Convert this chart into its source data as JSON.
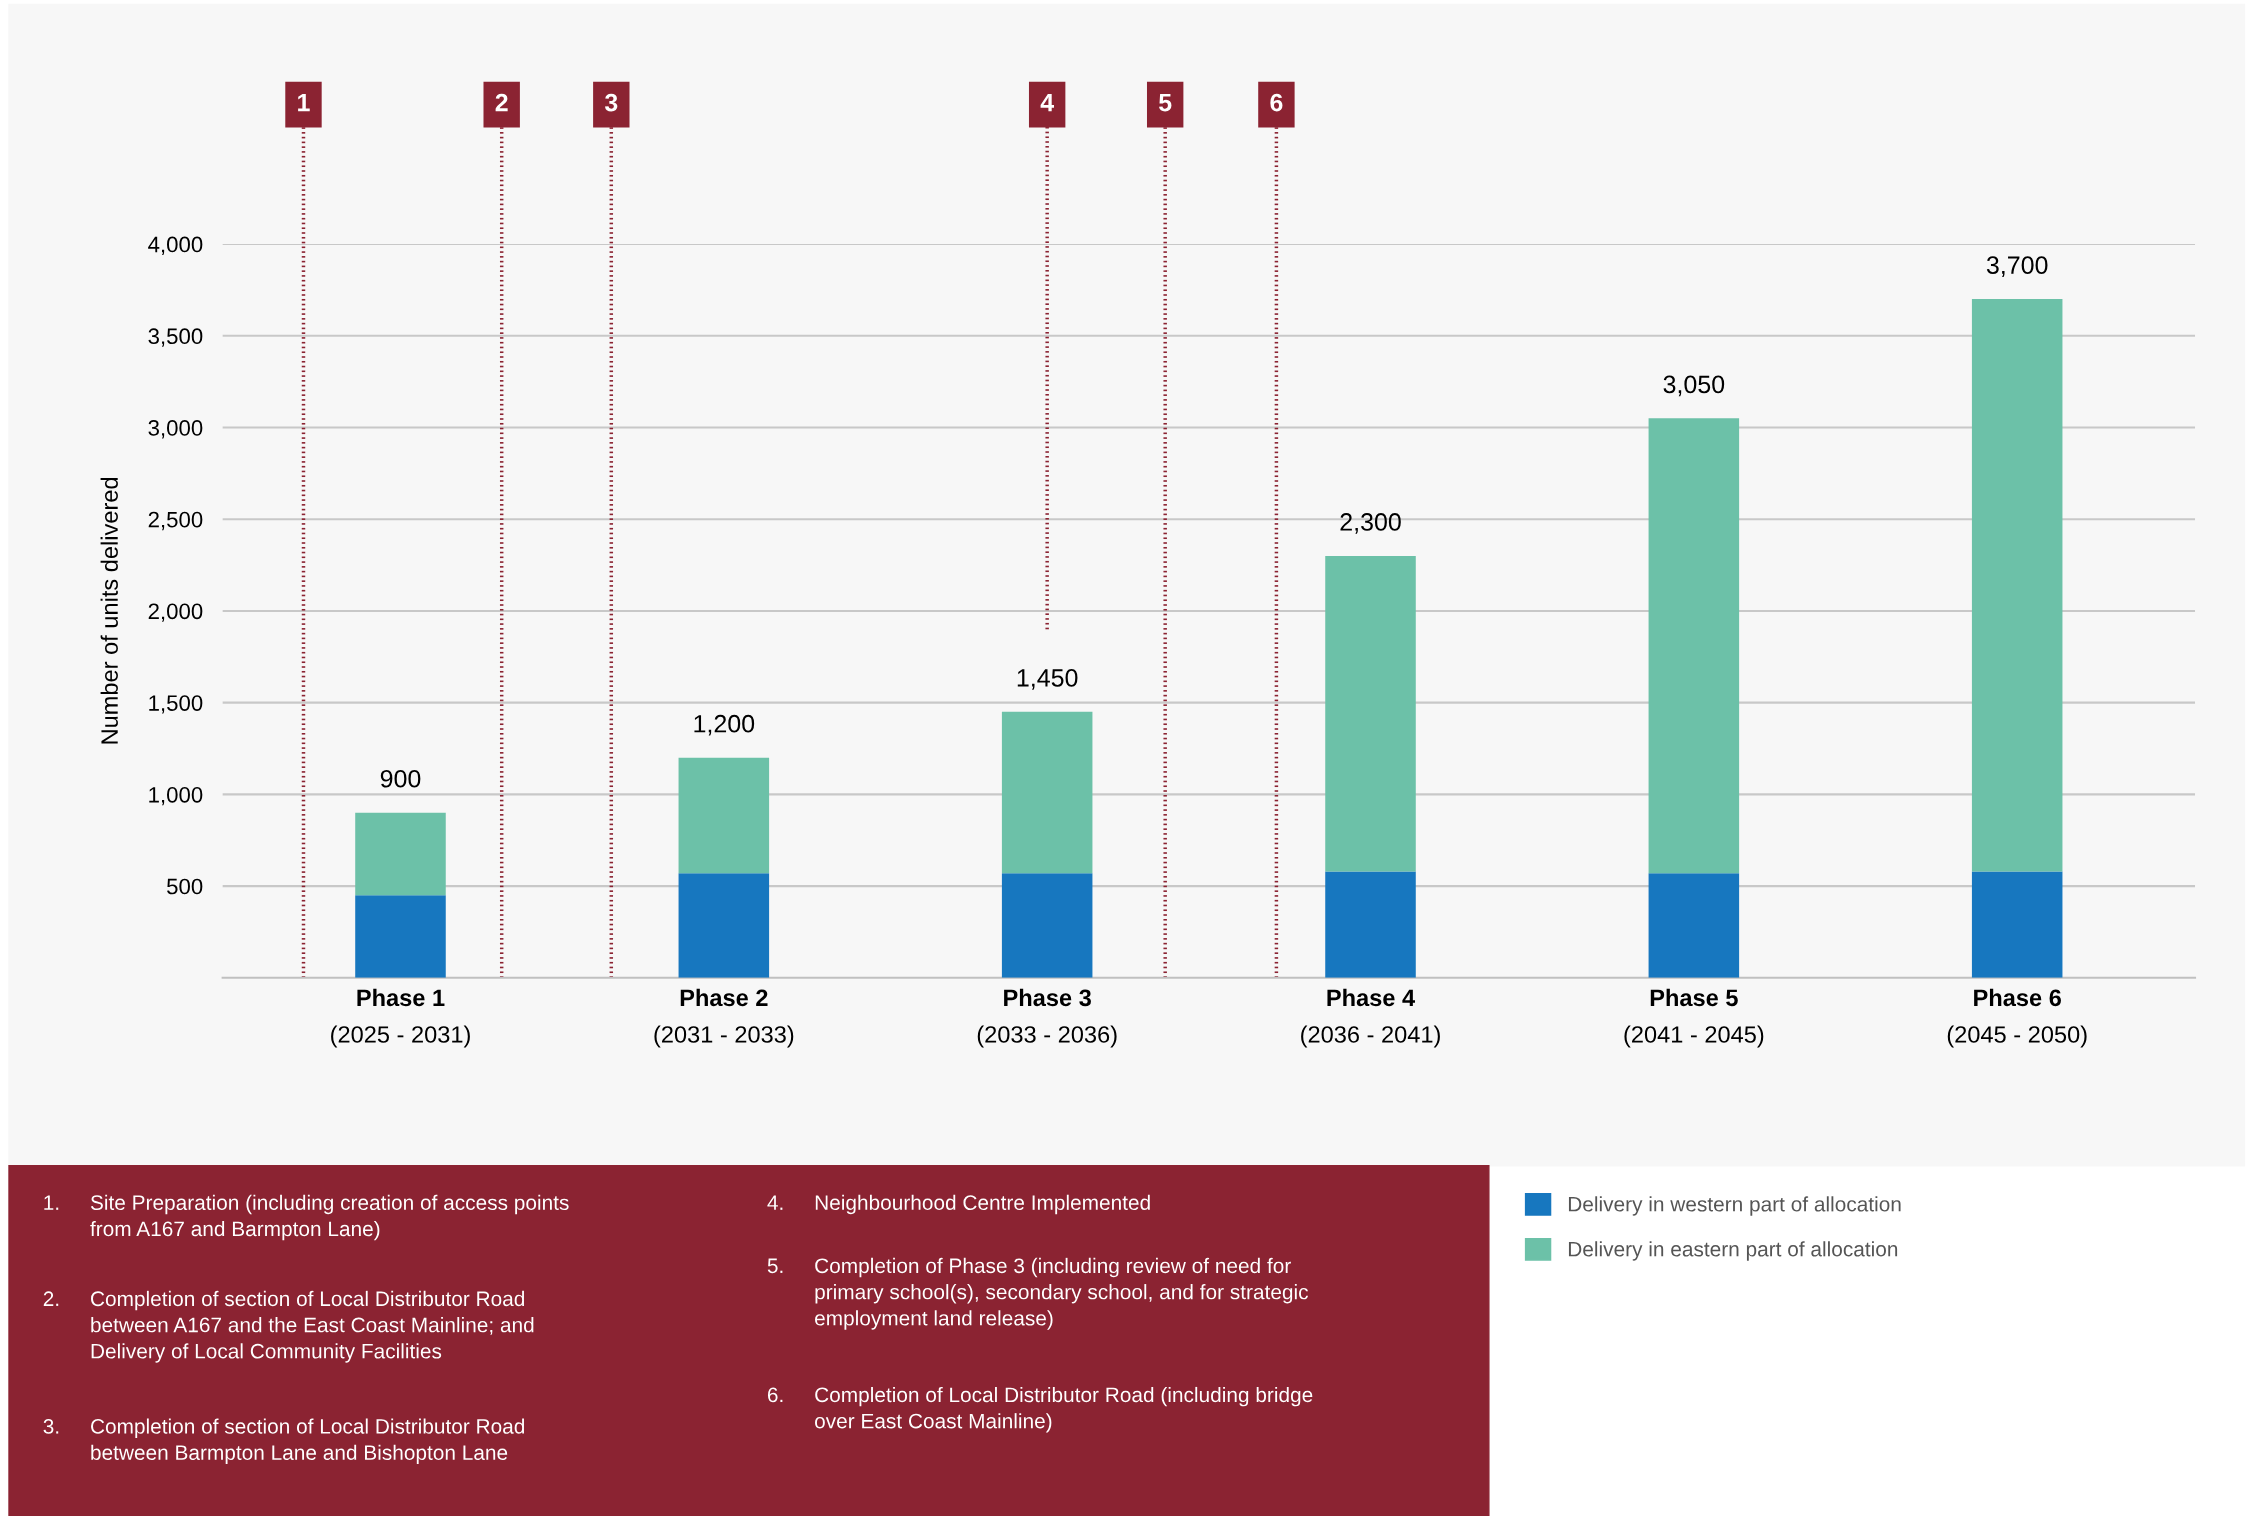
{
  "chart_data": {
    "type": "bar",
    "stacked": true,
    "ylabel": "Number of units delivered",
    "categories": [
      "Phase 1\n(2025 - 2031)",
      "Phase 2\n(2031 - 2033)",
      "Phase 3\n(2033 - 2036)",
      "Phase 4\n(2036 - 2041)",
      "Phase 5\n(2041 - 2045)",
      "Phase 6\n(2045 - 2050)"
    ],
    "series": [
      {
        "name": "Delivery in western part of allocation",
        "color": "#1777bf",
        "values": [
          450,
          570,
          570,
          580,
          570,
          580
        ]
      },
      {
        "name": "Delivery in eastern part of allocation",
        "color": "#6cc1a8",
        "values": [
          450,
          630,
          880,
          1720,
          2480,
          3120
        ]
      }
    ],
    "totals": [
      "900",
      "1,200",
      "1,450",
      "2,300",
      "3,050",
      "3,700"
    ],
    "ylim": [
      0,
      4000
    ],
    "yticks": [
      500,
      {
        "value": 1000,
        "label": "1,000"
      },
      {
        "value": 1500,
        "label": "1,500"
      },
      {
        "value": 2000,
        "label": "2,000"
      },
      {
        "value": 2500,
        "label": "2,500"
      },
      {
        "value": 3000,
        "label": "3,000"
      },
      {
        "value": 3500,
        "label": "3,500"
      },
      {
        "value": 4000,
        "label": "4,000"
      }
    ],
    "grid": "y",
    "legend": "bottom right",
    "annotations": [
      "1",
      "2",
      "3",
      "4",
      "5",
      "6",
      "1. Site Preparation (including creation of access points\nfrom A167 and Barmpton Lane)",
      "2. Completion of section of Local Distributor Road\nbetween A167 and the East Coast Mainline; and\nDelivery of Local Community Facilities",
      "3. Completion of section of Local Distributor Road\nbetween Barmpton Lane and Bishopton Lane",
      "4. Neighbourhood Centre Implemented",
      "5. Completion of Phase 3 (including review of need for\nprimary school(s), secondary school, and for strategic\nemployment land release)",
      "6. Completion of Local Distributor Road (including bridge\nover East Coast Mainline)"
    ]
  }
}
